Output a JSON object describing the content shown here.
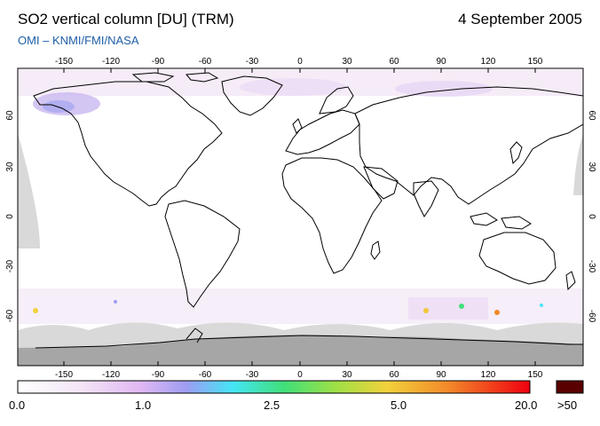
{
  "header": {
    "title": "SO2 vertical column [DU] (TRM)",
    "date": "4 September 2005",
    "credits": "OMI  –  KNMI/FMI/NASA"
  },
  "map": {
    "projection": "equirectangular",
    "lon_ticks_top": [
      "-150",
      "-120",
      "-90",
      "-60",
      "-30",
      "0",
      "30",
      "60",
      "90",
      "120",
      "150"
    ],
    "lon_ticks_bottom": [
      "-150",
      "-120",
      "-90",
      "-60",
      "-30",
      "0",
      "30",
      "60",
      "90",
      "120",
      "150"
    ],
    "lat_ticks_left": [
      "60",
      "30",
      "0",
      "-30",
      "-60"
    ],
    "lat_ticks_right": [
      "60",
      "30",
      "0",
      "-30",
      "-60"
    ],
    "colors": {
      "frame": "#000000",
      "coast": "#000000",
      "missing_data": "#d9d9d9",
      "polar_night": "#a6a6a6",
      "background": "#ffffff"
    }
  },
  "colorbar": {
    "labels": [
      "0.0",
      "1.0",
      "2.5",
      "5.0",
      "20.0",
      ">50"
    ],
    "gradient_colors": [
      "#ffffff",
      "#f2d9f5",
      "#d9a8f0",
      "#9b9bf0",
      "#44e8f5",
      "#40e07a",
      "#9be040",
      "#f0d23a",
      "#f08a2a",
      "#e82a1a",
      "#f00010"
    ],
    "over_color": "#5a0000"
  }
}
